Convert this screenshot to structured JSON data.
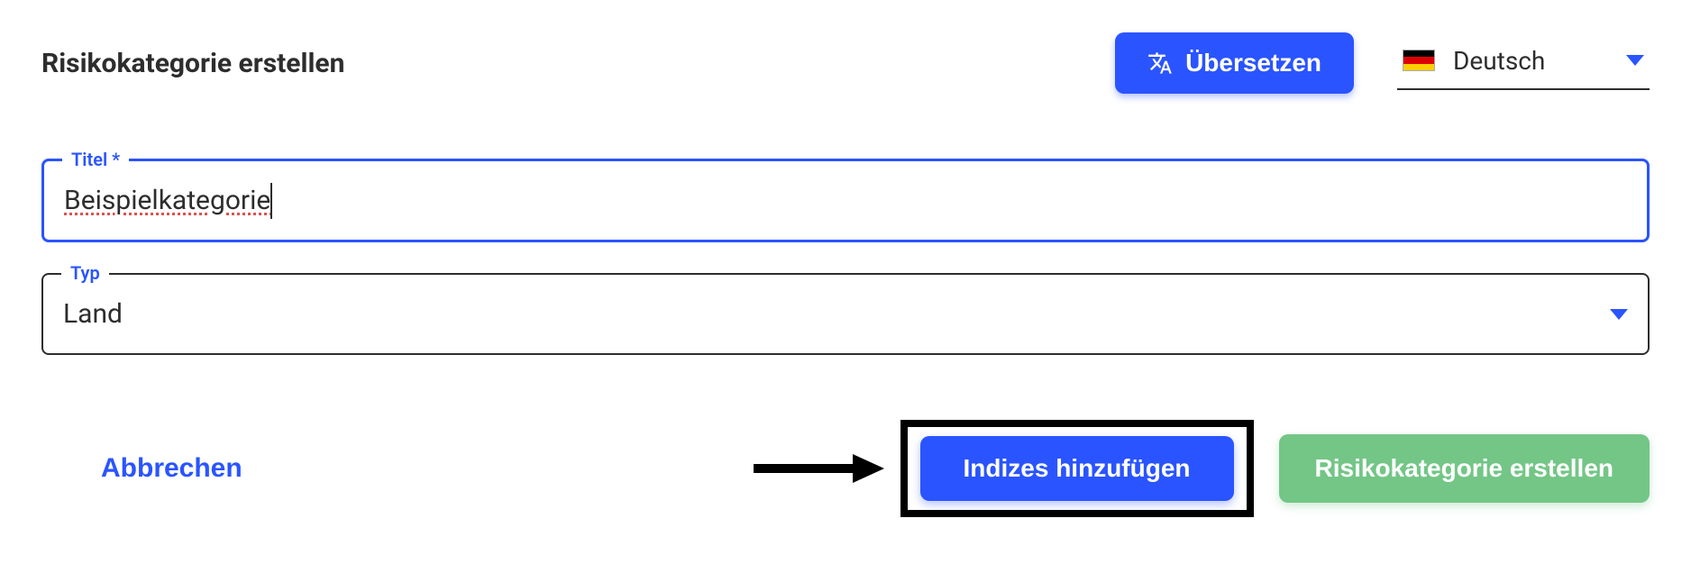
{
  "header": {
    "title": "Risikokategorie erstellen",
    "translate_label": "Übersetzen",
    "language": {
      "label": "Deutsch",
      "flag_colors": [
        "#000000",
        "#dd0000",
        "#ffce00"
      ]
    }
  },
  "form": {
    "title_field": {
      "label": "Titel *",
      "value": "Beispielkategorie"
    },
    "type_field": {
      "label": "Typ",
      "value": "Land"
    }
  },
  "footer": {
    "cancel_label": "Abbrechen",
    "add_indices_label": "Indizes hinzufügen",
    "create_label": "Risikokategorie erstellen"
  },
  "colors": {
    "primary": "#2a54ff",
    "success": "#73c686",
    "text": "#2d2d2d",
    "annotation": "#000000"
  }
}
